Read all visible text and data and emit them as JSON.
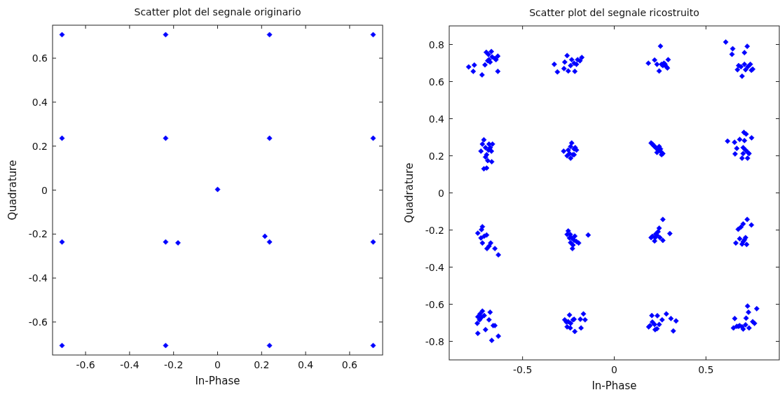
{
  "chart_data": [
    {
      "type": "scatter",
      "title": "Scatter plot del segnale originario",
      "xlabel": "In-Phase",
      "ylabel": "Quadrature",
      "xlim": [
        -0.75,
        0.75
      ],
      "ylim": [
        -0.75,
        0.75
      ],
      "xticks": [
        -0.6,
        -0.4,
        -0.2,
        0,
        0.2,
        0.4,
        0.6
      ],
      "yticks": [
        -0.6,
        -0.4,
        -0.2,
        0,
        0.2,
        0.4,
        0.6
      ],
      "marker": "diamond",
      "series": [
        {
          "color": "#0000ff",
          "x": [
            -0.707,
            -0.236,
            0.236,
            0.707,
            -0.707,
            -0.236,
            0.236,
            0.707,
            0,
            -0.707,
            -0.236,
            -0.18,
            0.215,
            0.236,
            0.707,
            -0.707,
            -0.236,
            0.236,
            0.707
          ],
          "values": [
            0.707,
            0.707,
            0.707,
            0.707,
            0.236,
            0.236,
            0.236,
            0.236,
            0.003,
            -0.236,
            -0.236,
            -0.24,
            -0.21,
            -0.236,
            -0.236,
            -0.707,
            -0.707,
            -0.707,
            -0.707
          ]
        }
      ]
    },
    {
      "type": "scatter",
      "title": "Scatter plot del segnale ricostruito",
      "xlabel": "In-Phase",
      "ylabel": "Quadrature",
      "xlim": [
        -0.9,
        0.9
      ],
      "ylim": [
        -0.9,
        0.9
      ],
      "xticks": [
        -0.5,
        0,
        0.5
      ],
      "yticks": [
        -0.8,
        -0.6,
        -0.4,
        -0.2,
        0,
        0.2,
        0.4,
        0.6,
        0.8
      ],
      "marker": "diamond",
      "series": [
        {
          "color": "#0000ff",
          "x": [
            -0.794,
            -0.763,
            -0.769,
            -0.721,
            -0.705,
            -0.698,
            -0.686,
            -0.67,
            -0.683,
            -0.666,
            -0.651,
            -0.635,
            -0.645,
            -0.635,
            -0.69,
            -0.677,
            -0.327,
            -0.31,
            -0.257,
            -0.27,
            -0.274,
            -0.251,
            -0.215,
            -0.232,
            -0.219,
            -0.2,
            -0.177,
            -0.187,
            -0.238,
            -0.206,
            -0.711,
            -0.719,
            -0.727,
            -0.702,
            -0.683,
            -0.664,
            -0.67,
            -0.696,
            -0.702,
            -0.69,
            -0.668,
            -0.711,
            -0.696,
            -0.676,
            -0.686,
            -0.276,
            -0.257,
            -0.238,
            -0.232,
            -0.219,
            -0.225,
            -0.213,
            -0.251,
            -0.244,
            -0.206,
            -0.219,
            -0.238,
            0.252,
            0.186,
            0.22,
            0.245,
            0.294,
            0.233,
            0.258,
            0.271,
            0.284,
            0.265,
            0.277,
            0.29,
            0.608,
            0.646,
            0.642,
            0.725,
            0.71,
            0.678,
            0.672,
            0.71,
            0.716,
            0.742,
            0.755,
            0.697,
            0.691,
            0.729,
            0.748,
            0.201,
            0.214,
            0.226,
            0.239,
            0.252,
            0.265,
            0.233,
            0.252,
            0.22,
            0.245,
            0.208,
            0.258,
            0.707,
            0.719,
            0.749,
            0.618,
            0.656,
            0.684,
            0.71,
            0.703,
            0.716,
            0.729,
            0.668,
            0.659,
            0.697,
            0.727,
            0.735,
            0.703,
            -0.744,
            -0.719,
            -0.724,
            -0.709,
            -0.696,
            -0.719,
            -0.694,
            -0.674,
            -0.651,
            -0.632,
            -0.727,
            -0.683,
            -0.251,
            -0.24,
            -0.232,
            -0.219,
            -0.206,
            -0.225,
            -0.238,
            -0.244,
            -0.257,
            -0.228,
            -0.194,
            -0.142,
            -0.215,
            0.265,
            0.245,
            0.239,
            0.208,
            0.223,
            0.22,
            0.233,
            0.249,
            0.265,
            0.303,
            0.201,
            0.226,
            0.725,
            0.748,
            0.703,
            0.691,
            0.676,
            0.684,
            0.663,
            0.703,
            0.716,
            0.722,
            0.697,
            0.71,
            -0.719,
            -0.732,
            -0.744,
            -0.709,
            -0.724,
            -0.747,
            -0.702,
            -0.683,
            -0.677,
            -0.66,
            -0.651,
            -0.744,
            -0.668,
            -0.632,
            -0.734,
            -0.244,
            -0.251,
            -0.261,
            -0.238,
            -0.257,
            -0.225,
            -0.219,
            -0.185,
            -0.168,
            -0.159,
            -0.181,
            -0.215,
            -0.27,
            -0.24,
            0.205,
            0.235,
            0.284,
            0.309,
            0.337,
            0.261,
            0.208,
            0.195,
            0.22,
            0.188,
            0.233,
            0.223,
            0.245,
            0.322,
            0.727,
            0.777,
            0.732,
            0.657,
            0.719,
            0.755,
            0.765,
            0.65,
            0.668,
            0.684,
            0.703,
            0.697,
            0.735,
            0.678,
            0.716
          ],
          "values": [
            0.679,
            0.689,
            0.655,
            0.636,
            0.69,
            0.758,
            0.746,
            0.762,
            0.718,
            0.733,
            0.724,
            0.737,
            0.718,
            0.655,
            0.712,
            0.705,
            0.693,
            0.652,
            0.74,
            0.705,
            0.67,
            0.657,
            0.655,
            0.718,
            0.699,
            0.718,
            0.73,
            0.712,
            0.686,
            0.693,
            0.286,
            0.263,
            0.225,
            0.244,
            0.263,
            0.263,
            0.225,
            0.206,
            0.193,
            0.174,
            0.168,
            0.13,
            0.134,
            0.244,
            0.231,
            0.225,
            0.2,
            0.25,
            0.269,
            0.237,
            0.206,
            0.244,
            0.231,
            0.212,
            0.231,
            0.206,
            0.187,
            0.791,
            0.699,
            0.716,
            0.657,
            0.718,
            0.693,
            0.693,
            0.699,
            0.68,
            0.686,
            0.693,
            0.673,
            0.813,
            0.777,
            0.747,
            0.79,
            0.756,
            0.686,
            0.664,
            0.693,
            0.664,
            0.693,
            0.667,
            0.629,
            0.68,
            0.68,
            0.661,
            0.269,
            0.256,
            0.244,
            0.231,
            0.225,
            0.212,
            0.218,
            0.237,
            0.25,
            0.25,
            0.263,
            0.206,
            0.326,
            0.317,
            0.297,
            0.279,
            0.273,
            0.288,
            0.282,
            0.244,
            0.231,
            0.218,
            0.24,
            0.21,
            0.187,
            0.187,
            0.212,
            0.212,
            -0.217,
            -0.182,
            -0.198,
            -0.233,
            -0.227,
            -0.27,
            -0.3,
            -0.27,
            -0.3,
            -0.334,
            -0.243,
            -0.287,
            -0.205,
            -0.224,
            -0.243,
            -0.255,
            -0.262,
            -0.281,
            -0.268,
            -0.243,
            -0.224,
            -0.3,
            -0.27,
            -0.227,
            -0.233,
            -0.143,
            -0.19,
            -0.209,
            -0.234,
            -0.241,
            -0.259,
            -0.228,
            -0.241,
            -0.256,
            -0.219,
            -0.241,
            -0.222,
            -0.143,
            -0.173,
            -0.167,
            -0.184,
            -0.196,
            -0.247,
            -0.27,
            -0.263,
            -0.241,
            -0.278,
            -0.276,
            -0.253,
            -0.637,
            -0.652,
            -0.668,
            -0.661,
            -0.671,
            -0.703,
            -0.737,
            -0.684,
            -0.643,
            -0.715,
            -0.715,
            -0.757,
            -0.795,
            -0.772,
            -0.684,
            -0.658,
            -0.694,
            -0.696,
            -0.703,
            -0.722,
            -0.684,
            -0.681,
            -0.681,
            -0.652,
            -0.684,
            -0.728,
            -0.747,
            -0.684,
            -0.728,
            -0.661,
            -0.662,
            -0.652,
            -0.677,
            -0.69,
            -0.684,
            -0.696,
            -0.715,
            -0.709,
            -0.722,
            -0.732,
            -0.737,
            -0.709,
            -0.744,
            -0.61,
            -0.624,
            -0.643,
            -0.677,
            -0.675,
            -0.694,
            -0.703,
            -0.728,
            -0.719,
            -0.715,
            -0.734,
            -0.722,
            -0.728,
            -0.719,
            -0.711
          ]
        }
      ]
    }
  ]
}
